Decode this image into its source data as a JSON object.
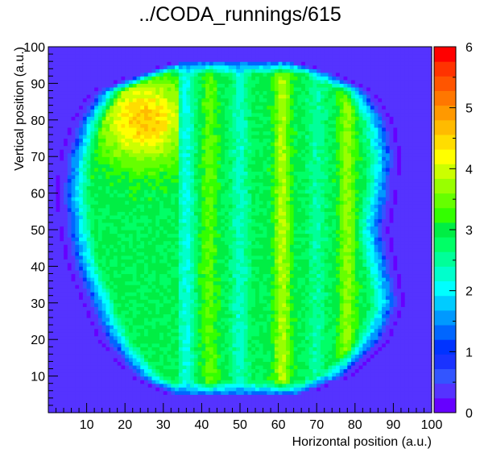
{
  "chart_data": {
    "type": "heatmap",
    "title": "../CODA_runnings/615",
    "xlabel": "Horizontal position (a.u.)",
    "ylabel": "Vertical position (a.u.)",
    "xlim": [
      0,
      100
    ],
    "ylim": [
      0,
      100
    ],
    "zlim": [
      0,
      6
    ],
    "x_ticks": [
      "10",
      "20",
      "30",
      "40",
      "50",
      "60",
      "70",
      "80",
      "90",
      "100"
    ],
    "y_ticks": [
      "10",
      "20",
      "30",
      "40",
      "50",
      "60",
      "70",
      "80",
      "90",
      "100"
    ],
    "z_ticks": [
      "0",
      "1",
      "2",
      "3",
      "4",
      "5",
      "6"
    ],
    "bins": 100,
    "background_value": 0.3,
    "beam_model": {
      "outer_boundary_rows": [
        {
          "y": 5,
          "x_left": 34,
          "x_right": 64
        },
        {
          "y": 10,
          "x_left": 24,
          "x_right": 76
        },
        {
          "y": 20,
          "x_left": 16,
          "x_right": 86
        },
        {
          "y": 30,
          "x_left": 12,
          "x_right": 90
        },
        {
          "y": 40,
          "x_left": 8,
          "x_right": 88
        },
        {
          "y": 50,
          "x_left": 6,
          "x_right": 86
        },
        {
          "y": 60,
          "x_left": 5,
          "x_right": 88
        },
        {
          "y": 70,
          "x_left": 6,
          "x_right": 89
        },
        {
          "y": 80,
          "x_left": 9,
          "x_right": 87
        },
        {
          "y": 88,
          "x_left": 14,
          "x_right": 82
        },
        {
          "y": 93,
          "x_left": 26,
          "x_right": 72
        },
        {
          "y": 96,
          "x_left": 36,
          "x_right": 62
        }
      ],
      "plateau": 2.9,
      "hot_spot": {
        "x": 25,
        "y": 80,
        "peak": 4.6,
        "radius": 11
      },
      "stripes": [
        {
          "x": 36,
          "value": 2.2
        },
        {
          "x": 42,
          "value": 3.4
        },
        {
          "x": 50,
          "value": 2.3
        },
        {
          "x": 61,
          "value": 3.8
        },
        {
          "x": 70,
          "value": 2.5
        },
        {
          "x": 78,
          "value": 3.7
        }
      ]
    },
    "palette": [
      "#6600ff",
      "#5533ff",
      "#3355ff",
      "#1a33ff",
      "#0033ff",
      "#0066ff",
      "#0099ff",
      "#00ccff",
      "#00ffff",
      "#00ffcc",
      "#00ff99",
      "#00ff66",
      "#00ee44",
      "#33ff00",
      "#66ff00",
      "#99ff00",
      "#ccff00",
      "#ffff00",
      "#ffdd00",
      "#ffbb00",
      "#ff9900",
      "#ff7700",
      "#ff5500",
      "#ff3300",
      "#ff0000"
    ]
  }
}
